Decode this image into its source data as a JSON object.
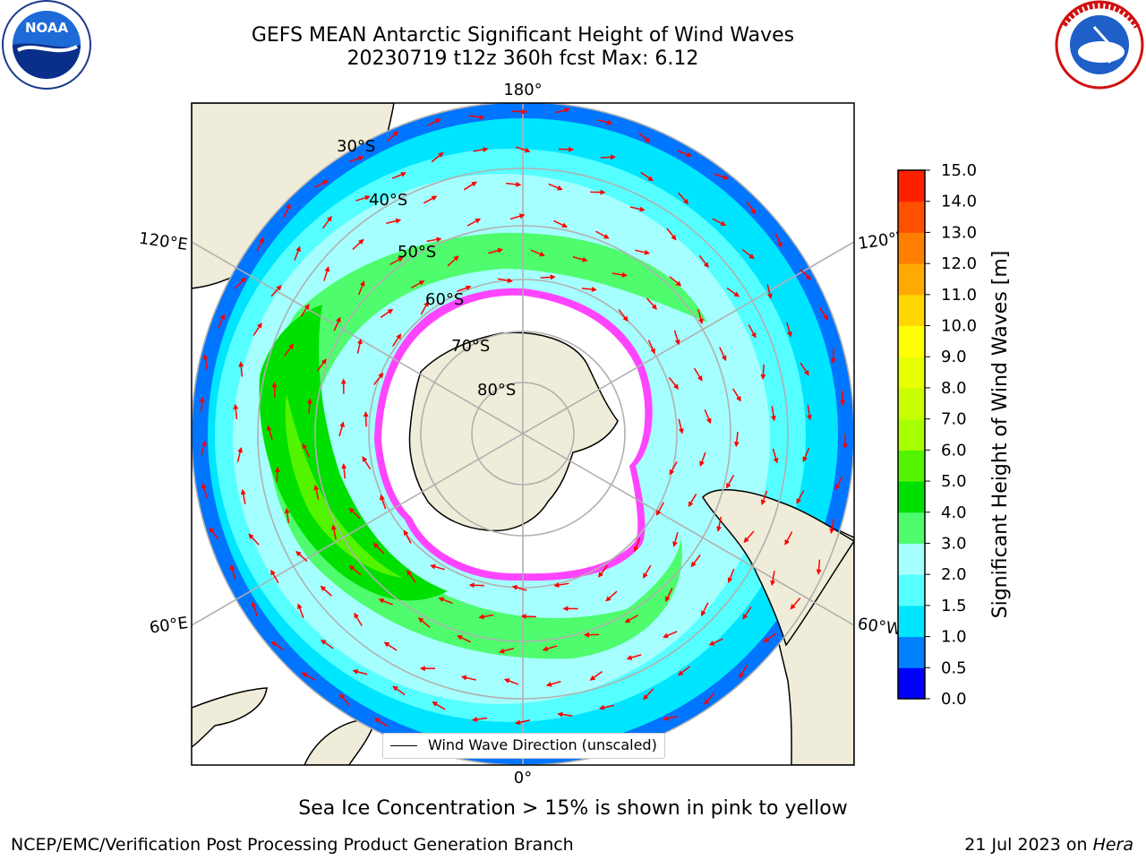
{
  "header": {
    "title_line1": "GEFS MEAN Antarctic Significant Height of Wind Waves",
    "title_line2": "20230719 t12z 360h fcst   Max: 6.12"
  },
  "logos": {
    "left_logo_text": "NOAA",
    "right_logo_text": "NATIONAL WEATHER SERVICE"
  },
  "map": {
    "longitude_labels": {
      "top": "180°",
      "bottom": "0°",
      "left_upper": "120°E",
      "left_lower": "60°E",
      "right_upper": "120°W",
      "right_lower": "60°W"
    },
    "latitude_labels": [
      "30°S",
      "40°S",
      "50°S",
      "60°S",
      "70°S",
      "80°S"
    ],
    "legend": {
      "label": "Wind Wave Direction (unscaled)"
    },
    "colors": {
      "land": "#efecd9",
      "ice_free_ocean_low": "#0075ff",
      "wave_1_0": "#00e5ff",
      "wave_1_5": "#56ffff",
      "wave_2_0": "#a6ffff",
      "wave_3_0": "#4efc6e",
      "wave_4_0": "#00e000",
      "wave_5_0": "#52f400",
      "arrow": "#ff0000",
      "sea_ice_edge": "#ff44ff"
    }
  },
  "colorbar": {
    "label": "Significant Height of Wind Waves [m]",
    "ticks": [
      "0.0",
      "0.5",
      "1.0",
      "1.5",
      "2.0",
      "3.0",
      "4.0",
      "5.0",
      "6.0",
      "7.0",
      "8.0",
      "9.0",
      "10.0",
      "11.0",
      "12.0",
      "13.0",
      "14.0",
      "15.0"
    ],
    "colors": [
      "#0000ff",
      "#0080ff",
      "#00e5ff",
      "#56ffff",
      "#a6ffff",
      "#4efc6e",
      "#00e000",
      "#52f400",
      "#a8ff00",
      "#c8ff00",
      "#e8ff00",
      "#ffff00",
      "#ffd700",
      "#ffaa00",
      "#ff8000",
      "#ff5000",
      "#ff2000"
    ]
  },
  "footer": {
    "note": "Sea Ice Concentration > 15% is shown in pink to yellow",
    "credit_left": "NCEP/EMC/Verification Post Processing Product Generation Branch",
    "credit_right_date": "21 Jul 2023 on",
    "credit_right_system": "Hera"
  }
}
